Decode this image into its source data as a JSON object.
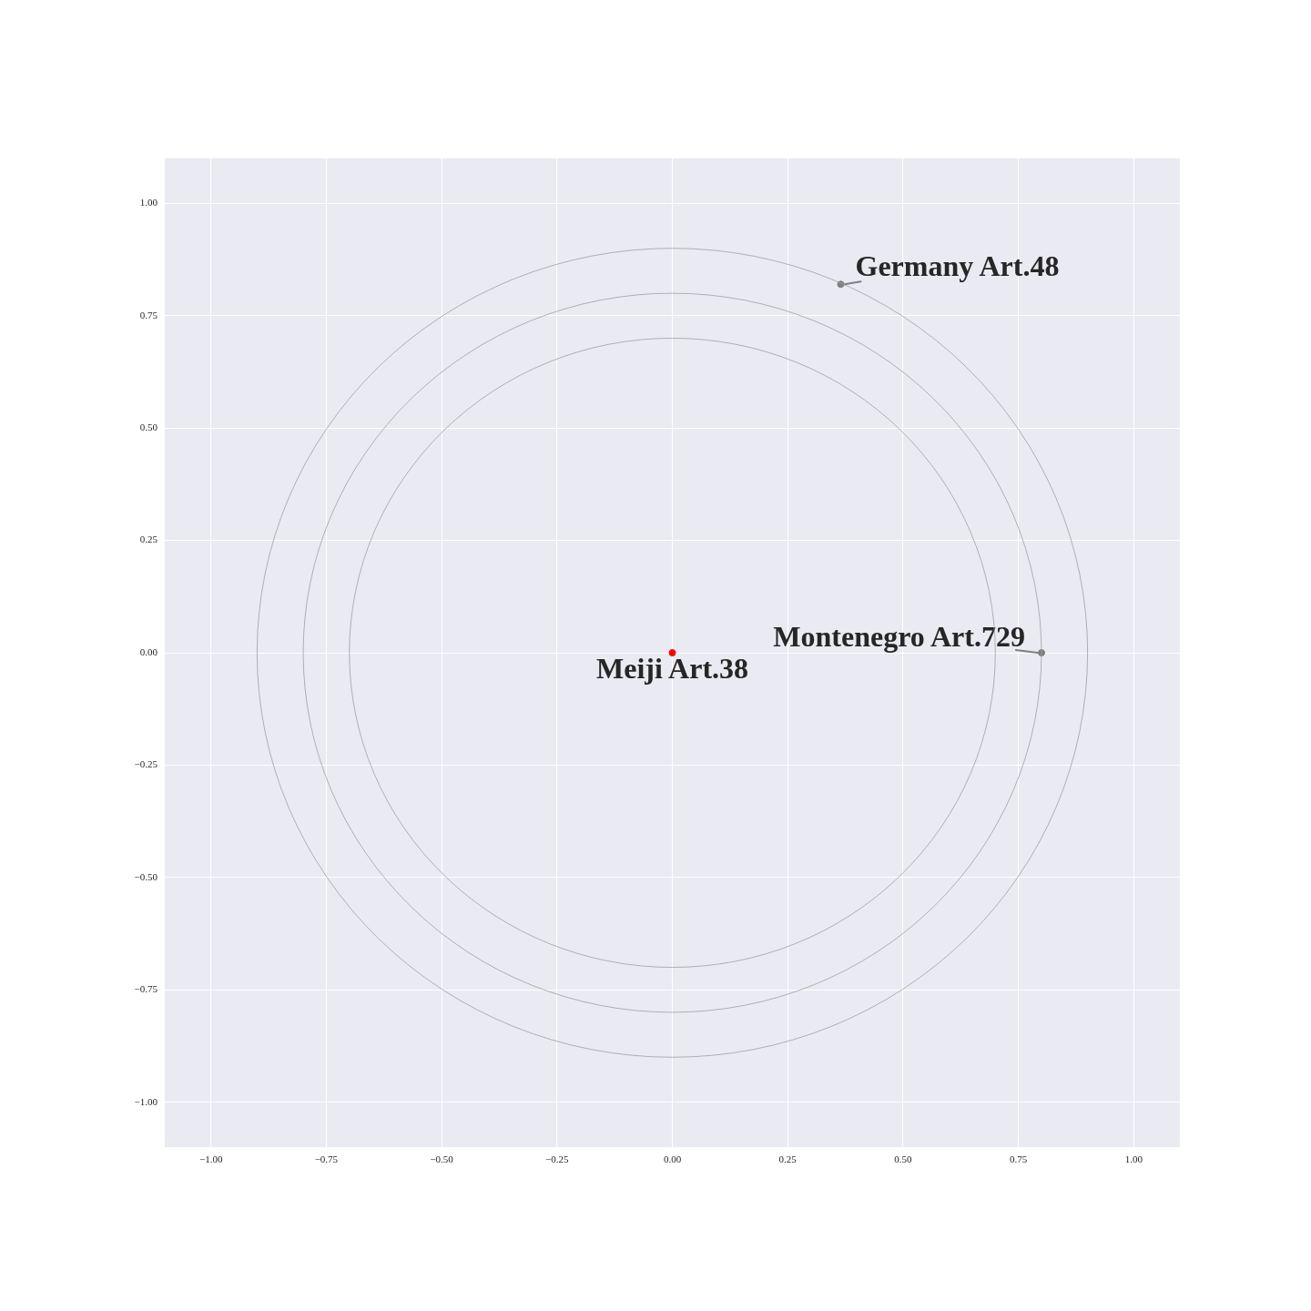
{
  "chart_data": {
    "type": "scatter",
    "marker": "circle",
    "grid": true,
    "xlim": [
      -1.1,
      1.1
    ],
    "ylim": [
      -1.1,
      1.1
    ],
    "xticks": [
      {
        "value": -1,
        "label": "−1.00"
      },
      {
        "value": -0.75,
        "label": "−0.75"
      },
      {
        "value": -0.5,
        "label": "−0.50"
      },
      {
        "value": -0.25,
        "label": "−0.25"
      },
      {
        "value": 0,
        "label": "0.00"
      },
      {
        "value": 0.25,
        "label": "0.25"
      },
      {
        "value": 0.5,
        "label": "0.50"
      },
      {
        "value": 0.75,
        "label": "0.75"
      },
      {
        "value": 1,
        "label": "1.00"
      }
    ],
    "yticks": [
      {
        "value": -1,
        "label": "−1.00"
      },
      {
        "value": -0.75,
        "label": "−0.75"
      },
      {
        "value": -0.5,
        "label": "−0.50"
      },
      {
        "value": -0.25,
        "label": "−0.25"
      },
      {
        "value": 0,
        "label": "0.00"
      },
      {
        "value": 0.25,
        "label": "0.25"
      },
      {
        "value": 0.5,
        "label": "0.50"
      },
      {
        "value": 0.75,
        "label": "0.75"
      },
      {
        "value": 1,
        "label": "1.00"
      }
    ],
    "series": [
      {
        "type": "scatter",
        "color": "#7f7f7f",
        "x": [
          0.365,
          0.8
        ],
        "values": [
          0.82,
          0
        ]
      },
      {
        "type": "scatter",
        "color": "#ff0000",
        "x": [
          0
        ],
        "values": [
          0
        ]
      }
    ],
    "annotations": [
      {
        "text": "Germany Art.48",
        "x": 0.365,
        "y": 0.82
      },
      {
        "text": "Montenegro Art.729",
        "x": 0.8,
        "y": 0
      },
      {
        "text": "Meiji Art.38",
        "x": 0,
        "y": 0
      }
    ]
  }
}
